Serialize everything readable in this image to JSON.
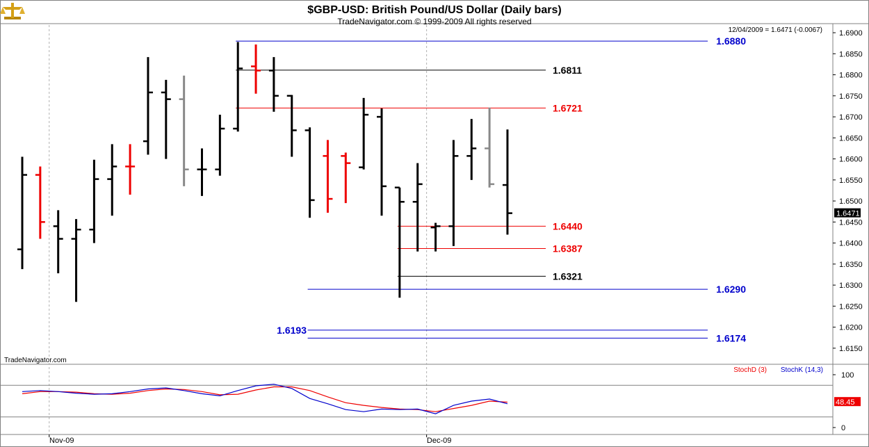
{
  "header": {
    "title": "$GBP-USD:  British Pound/US Dollar  (Daily bars)",
    "subtitle": "TradeNavigator.com © 1999-2009 All rights reserved",
    "last_quote": "12/04/2009 = 1.6471 (-0.0067)",
    "watermark": "TradeNavigator.com"
  },
  "colors": {
    "up_bar": "#000000",
    "down_bar": "#ee0000",
    "neutral_bar": "#888888",
    "blue_level": "#0000cc",
    "red_level": "#ee0000",
    "black_level": "#000000",
    "stoch_d": "#ee0000",
    "stoch_k": "#0000cc"
  },
  "chart_data": [
    {
      "type": "ohlc",
      "y_ticks": [
        "1.6900",
        "1.6850",
        "1.6800",
        "1.6750",
        "1.6700",
        "1.6650",
        "1.6600",
        "1.6550",
        "1.6500",
        "1.6450",
        "1.6400",
        "1.6350",
        "1.6300",
        "1.6250",
        "1.6200",
        "1.6150"
      ],
      "ylim": [
        1.6125,
        1.691
      ],
      "x_ticks": [
        {
          "label": "Nov-09",
          "bar_index": 2
        },
        {
          "label": "Dec-09",
          "bar_index": 23
        }
      ],
      "current_price_label": "1.6471",
      "current_price": 1.6471,
      "bars": [
        {
          "o": 1.6385,
          "h": 1.6605,
          "l": 1.6338,
          "c": 1.6562,
          "color": "up"
        },
        {
          "o": 1.6562,
          "h": 1.6582,
          "l": 1.641,
          "c": 1.645,
          "color": "down"
        },
        {
          "o": 1.644,
          "h": 1.6478,
          "l": 1.6328,
          "c": 1.641,
          "color": "up"
        },
        {
          "o": 1.641,
          "h": 1.6457,
          "l": 1.626,
          "c": 1.6432,
          "color": "up"
        },
        {
          "o": 1.6432,
          "h": 1.6598,
          "l": 1.64,
          "c": 1.6552,
          "color": "up"
        },
        {
          "o": 1.6552,
          "h": 1.6635,
          "l": 1.6465,
          "c": 1.6582,
          "color": "up"
        },
        {
          "o": 1.6582,
          "h": 1.6635,
          "l": 1.6515,
          "c": 1.6582,
          "color": "down"
        },
        {
          "o": 1.6642,
          "h": 1.6842,
          "l": 1.661,
          "c": 1.6758,
          "color": "up"
        },
        {
          "o": 1.6758,
          "h": 1.6788,
          "l": 1.66,
          "c": 1.6742,
          "color": "up"
        },
        {
          "o": 1.6742,
          "h": 1.6798,
          "l": 1.6535,
          "c": 1.6575,
          "color": "neutral"
        },
        {
          "o": 1.6575,
          "h": 1.6625,
          "l": 1.6512,
          "c": 1.6575,
          "color": "up"
        },
        {
          "o": 1.6575,
          "h": 1.6705,
          "l": 1.656,
          "c": 1.6672,
          "color": "up"
        },
        {
          "o": 1.6672,
          "h": 1.6878,
          "l": 1.6665,
          "c": 1.6815,
          "color": "up"
        },
        {
          "o": 1.682,
          "h": 1.6872,
          "l": 1.6755,
          "c": 1.681,
          "color": "down"
        },
        {
          "o": 1.681,
          "h": 1.6842,
          "l": 1.6712,
          "c": 1.675,
          "color": "up"
        },
        {
          "o": 1.675,
          "h": 1.6752,
          "l": 1.6605,
          "c": 1.6668,
          "color": "up"
        },
        {
          "o": 1.6668,
          "h": 1.6675,
          "l": 1.646,
          "c": 1.6502,
          "color": "up"
        },
        {
          "o": 1.6607,
          "h": 1.6645,
          "l": 1.6472,
          "c": 1.6505,
          "color": "down"
        },
        {
          "o": 1.6607,
          "h": 1.6615,
          "l": 1.6495,
          "c": 1.659,
          "color": "down"
        },
        {
          "o": 1.658,
          "h": 1.6745,
          "l": 1.6575,
          "c": 1.6705,
          "color": "up"
        },
        {
          "o": 1.67,
          "h": 1.672,
          "l": 1.6465,
          "c": 1.6535,
          "color": "up"
        },
        {
          "o": 1.6532,
          "h": 1.6532,
          "l": 1.627,
          "c": 1.6498,
          "color": "up"
        },
        {
          "o": 1.6498,
          "h": 1.659,
          "l": 1.638,
          "c": 1.654,
          "color": "up"
        },
        {
          "o": 1.6437,
          "h": 1.6448,
          "l": 1.638,
          "c": 1.644,
          "color": "up"
        },
        {
          "o": 1.644,
          "h": 1.6645,
          "l": 1.6393,
          "c": 1.6607,
          "color": "up"
        },
        {
          "o": 1.6607,
          "h": 1.6695,
          "l": 1.655,
          "c": 1.6625,
          "color": "up"
        },
        {
          "o": 1.6625,
          "h": 1.6722,
          "l": 1.6532,
          "c": 1.654,
          "color": "neutral"
        },
        {
          "o": 1.6538,
          "h": 1.667,
          "l": 1.642,
          "c": 1.6471,
          "color": "up"
        }
      ],
      "levels": [
        {
          "value": 1.688,
          "label": "1.6880",
          "color": "blue",
          "from_bar": 12,
          "to": "right",
          "label_side": "right"
        },
        {
          "value": 1.6811,
          "label": "1.6811",
          "color": "black",
          "from_bar": 12,
          "to_bar": 28,
          "label_side": "end"
        },
        {
          "value": 1.6721,
          "label": "1.6721",
          "color": "red",
          "from_bar": 12,
          "to_bar": 28,
          "label_side": "end"
        },
        {
          "value": 1.644,
          "label": "1.6440",
          "color": "red",
          "from_bar": 21,
          "to_bar": 28,
          "label_side": "end"
        },
        {
          "value": 1.6387,
          "label": "1.6387",
          "color": "red",
          "from_bar": 21,
          "to_bar": 28,
          "label_side": "end"
        },
        {
          "value": 1.6321,
          "label": "1.6321",
          "color": "black",
          "from_bar": 21,
          "to_bar": 28,
          "label_side": "end"
        },
        {
          "value": 1.629,
          "label": "1.6290",
          "color": "blue",
          "from_bar": 16,
          "to": "right",
          "label_side": "right"
        },
        {
          "value": 1.6193,
          "label": "1.6193",
          "color": "blue",
          "from_bar": 16,
          "to": "right",
          "label_side": "left"
        },
        {
          "value": 1.6174,
          "label": "1.6174",
          "color": "blue",
          "from_bar": 16,
          "to": "right",
          "label_side": "right"
        }
      ]
    },
    {
      "type": "line",
      "y_ticks": [
        "100",
        "0"
      ],
      "ylim": [
        0,
        100
      ],
      "reference_levels": [
        80,
        20
      ],
      "current_value_label": "48.45",
      "current_value": 48.45,
      "legend": [
        "StochD (3)",
        "StochK (14,3)"
      ],
      "series": [
        {
          "name": "StochD (3)",
          "color": "red",
          "values": [
            64,
            68,
            68,
            67,
            64,
            63,
            65,
            70,
            73,
            72,
            68,
            62,
            63,
            71,
            77,
            77,
            70,
            58,
            47,
            42,
            38,
            35,
            34,
            30,
            36,
            42,
            50,
            48
          ]
        },
        {
          "name": "StochK (14,3)",
          "color": "blue",
          "values": [
            68,
            70,
            68,
            65,
            63,
            64,
            68,
            73,
            75,
            70,
            64,
            60,
            70,
            79,
            82,
            74,
            55,
            45,
            34,
            30,
            35,
            34,
            35,
            26,
            42,
            50,
            54,
            45
          ]
        }
      ]
    }
  ]
}
